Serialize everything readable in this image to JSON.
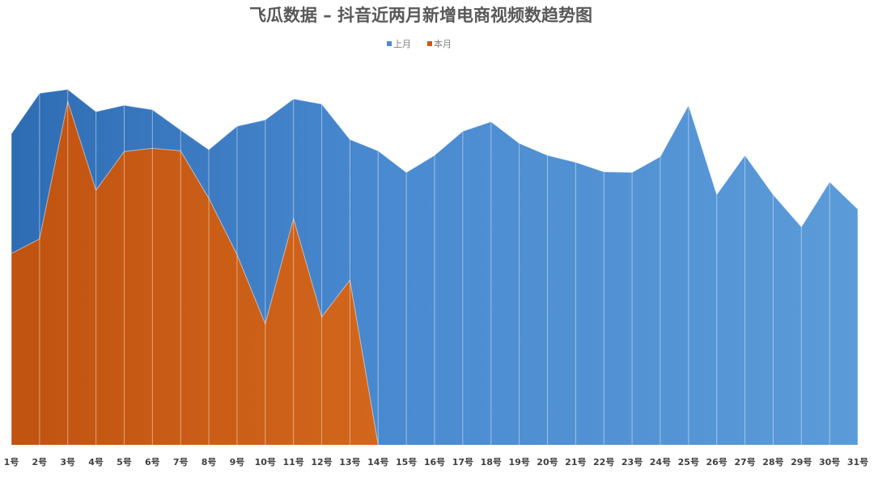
{
  "chart_data": {
    "type": "area",
    "title": "飞瓜数据 – 抖音近两月新增电商视频数趋势图",
    "categories": [
      "1号",
      "2号",
      "3号",
      "4号",
      "5号",
      "6号",
      "7号",
      "8号",
      "9号",
      "10号",
      "11号",
      "12号",
      "13号",
      "14号",
      "15号",
      "16号",
      "17号",
      "18号",
      "19号",
      "20号",
      "21号",
      "22号",
      "23号",
      "24号",
      "25号",
      "26号",
      "27号",
      "28号",
      "29号",
      "30号",
      "31号"
    ],
    "series": [
      {
        "name": "上月",
        "color": "#4a8ad0",
        "values": [
          4.91,
          5.55,
          5.61,
          5.26,
          5.36,
          5.29,
          4.97,
          4.66,
          5.03,
          5.13,
          5.46,
          5.38,
          4.82,
          4.64,
          4.3,
          4.57,
          4.95,
          5.1,
          4.76,
          4.57,
          4.46,
          4.31,
          4.3,
          4.55,
          5.36,
          3.95,
          4.57,
          3.95,
          3.44,
          4.15,
          3.72
        ]
      },
      {
        "name": "本月",
        "color": "#c85a14",
        "values": [
          3.02,
          3.25,
          5.42,
          4.02,
          4.63,
          4.68,
          4.64,
          3.89,
          3.0,
          1.91,
          3.57,
          2.02,
          2.6,
          0,
          null,
          null,
          null,
          null,
          null,
          null,
          null,
          null,
          null,
          null,
          null,
          null,
          null,
          null,
          null,
          null,
          null
        ]
      }
    ],
    "ylim": [
      0,
      6.0
    ],
    "legend": "top"
  }
}
